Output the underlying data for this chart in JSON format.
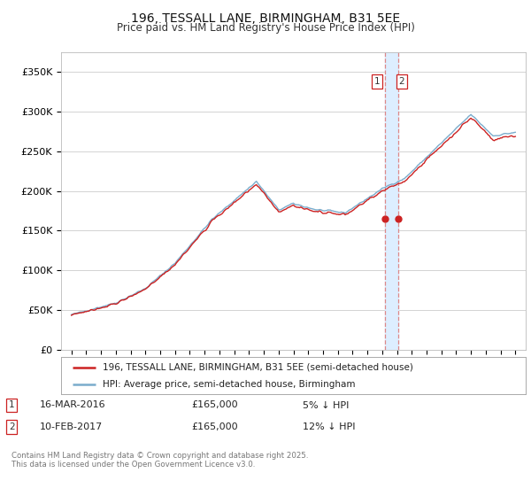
{
  "title": "196, TESSALL LANE, BIRMINGHAM, B31 5EE",
  "subtitle": "Price paid vs. HM Land Registry's House Price Index (HPI)",
  "ylabel_ticks": [
    "£0",
    "£50K",
    "£100K",
    "£150K",
    "£200K",
    "£250K",
    "£300K",
    "£350K"
  ],
  "ylim": [
    0,
    375000
  ],
  "yticks": [
    0,
    50000,
    100000,
    150000,
    200000,
    250000,
    300000,
    350000
  ],
  "legend_line1": "196, TESSALL LANE, BIRMINGHAM, B31 5EE (semi-detached house)",
  "legend_line2": "HPI: Average price, semi-detached house, Birmingham",
  "transaction1_label": "1",
  "transaction1_date": "16-MAR-2016",
  "transaction1_price": "£165,000",
  "transaction1_hpi": "5% ↓ HPI",
  "transaction2_label": "2",
  "transaction2_date": "10-FEB-2017",
  "transaction2_price": "£165,000",
  "transaction2_hpi": "12% ↓ HPI",
  "vline_x1": 2016.21,
  "vline_x2": 2017.11,
  "marker1_x": 2016.21,
  "marker1_y": 165000,
  "marker2_x": 2017.11,
  "marker2_y": 165000,
  "copyright_text": "Contains HM Land Registry data © Crown copyright and database right 2025.\nThis data is licensed under the Open Government Licence v3.0.",
  "line_color_red": "#cc2222",
  "line_color_blue": "#7aaccc",
  "vline_color": "#dd8888",
  "span_color": "#ddeeff",
  "background_color": "#ffffff",
  "grid_color": "#cccccc",
  "title_fontsize": 10,
  "subtitle_fontsize": 8.5,
  "tick_fontsize": 8,
  "xlim_left": 1994.3,
  "xlim_right": 2025.7
}
